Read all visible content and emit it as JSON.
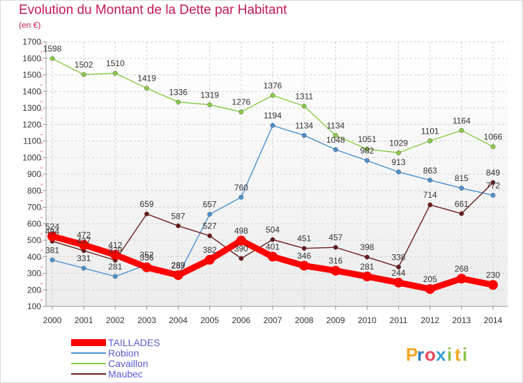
{
  "chart_data": {
    "type": "line",
    "title": "Evolution du Montant de la Dette par Habitant",
    "subtitle": "(en €)",
    "xlabel": "",
    "ylabel": "",
    "x": [
      "2000",
      "2001",
      "2002",
      "2003",
      "2004",
      "2005",
      "2006",
      "2007",
      "2008",
      "2009",
      "2010",
      "2011",
      "2012",
      "2013",
      "2014"
    ],
    "ylim": [
      100,
      1700
    ],
    "yticks": [
      100,
      200,
      300,
      400,
      500,
      600,
      700,
      800,
      900,
      1000,
      1100,
      1200,
      1300,
      1400,
      1500,
      1600,
      1700
    ],
    "grid": true,
    "legend_position": "bottom-left",
    "series": [
      {
        "name": "TAILLADES",
        "color": "#ff0000",
        "highlight": true,
        "values": [
          524,
          472,
          412,
          336,
          289,
          382,
          498,
          401,
          346,
          316,
          281,
          244,
          205,
          268,
          230
        ]
      },
      {
        "name": "Robion",
        "color": "#4a90d0",
        "values": [
          381,
          331,
          281,
          352,
          287,
          657,
          760,
          1194,
          1134,
          1048,
          982,
          913,
          863,
          815,
          772
        ]
      },
      {
        "name": "Cavaillon",
        "color": "#88cc44",
        "values": [
          1598,
          1502,
          1510,
          1419,
          1336,
          1319,
          1276,
          1376,
          1311,
          1134,
          1051,
          1029,
          1101,
          1164,
          1066
        ]
      },
      {
        "name": "Maubec",
        "color": "#6b1a1a",
        "values": [
          494,
          437,
          379,
          659,
          587,
          527,
          390,
          504,
          451,
          457,
          398,
          338,
          714,
          661,
          849
        ]
      }
    ]
  },
  "brand": {
    "text": "Proxiti",
    "letters": [
      "P",
      "r",
      "o",
      "x",
      "i",
      "t",
      "i"
    ]
  }
}
